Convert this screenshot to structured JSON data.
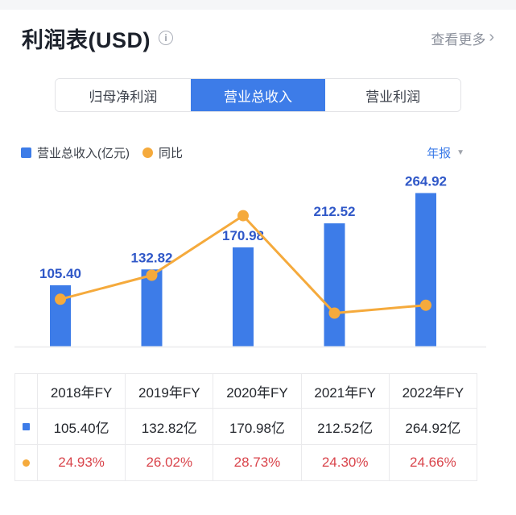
{
  "header": {
    "title": "利润表(USD)",
    "view_more": "查看更多",
    "chevron_right": "›",
    "info_icon": "i"
  },
  "tabs": [
    {
      "label": "归母净利润",
      "active": false
    },
    {
      "label": "营业总收入",
      "active": true
    },
    {
      "label": "营业利润",
      "active": false
    }
  ],
  "legend": {
    "bar_label": "营业总收入(亿元)",
    "line_label": "同比",
    "period": "年报",
    "dropdown_icon": "▼"
  },
  "chart_data": {
    "type": "bar+line",
    "categories": [
      "2018年FY",
      "2019年FY",
      "2020年FY",
      "2021年FY",
      "2022年FY"
    ],
    "series": [
      {
        "name": "营业总收入(亿元)",
        "type": "bar",
        "unit": "亿元",
        "values": [
          105.4,
          132.82,
          170.98,
          212.52,
          264.92
        ]
      },
      {
        "name": "同比",
        "type": "line",
        "unit": "%",
        "values": [
          24.93,
          26.02,
          28.73,
          24.3,
          24.66
        ]
      }
    ],
    "bar_labels": [
      "105.40",
      "132.82",
      "170.98",
      "212.52",
      "264.92"
    ],
    "title": "",
    "xlabel": "",
    "ylabel": "",
    "grid": false,
    "legend_position": "top-left",
    "x_axis_labels_visible": false
  },
  "table": {
    "columns": [
      "2018年FY",
      "2019年FY",
      "2020年FY",
      "2021年FY",
      "2022年FY"
    ],
    "rows": [
      {
        "legend": "bar",
        "values": [
          "105.40亿",
          "132.82亿",
          "170.98亿",
          "212.52亿",
          "264.92亿"
        ]
      },
      {
        "legend": "line",
        "values": [
          "24.93%",
          "26.02%",
          "28.73%",
          "24.30%",
          "24.66%"
        ]
      }
    ]
  },
  "colors": {
    "blue": "#3d7ce8",
    "orange": "#f5aa3c",
    "bar_label_blue": "#3058c8",
    "red": "#d9444b"
  }
}
